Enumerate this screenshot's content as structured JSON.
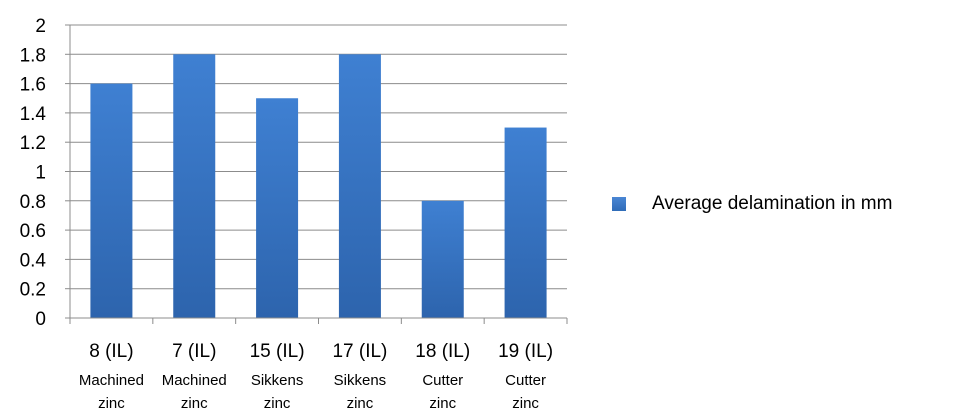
{
  "chart_data": {
    "type": "bar",
    "categories": [
      {
        "label": "8 (IL)",
        "sub": [
          "Machined",
          "zinc"
        ]
      },
      {
        "label": "7 (IL)",
        "sub": [
          "Machined",
          "zinc"
        ]
      },
      {
        "label": "15 (IL)",
        "sub": [
          "Sikkens",
          "zinc"
        ]
      },
      {
        "label": "17 (IL)",
        "sub": [
          "Sikkens",
          "zinc"
        ]
      },
      {
        "label": "18 (IL)",
        "sub": [
          "Cutter",
          "zinc"
        ]
      },
      {
        "label": "19 (IL)",
        "sub": [
          "Cutter",
          "zinc"
        ]
      }
    ],
    "series": [
      {
        "name": "Average delamination in mm",
        "values": [
          1.6,
          1.8,
          1.5,
          1.8,
          0.8,
          1.3
        ],
        "color": "#3a78c8"
      }
    ],
    "ylim": [
      0,
      2
    ],
    "yticks": [
      "0",
      "0.2",
      "0.4",
      "0.6",
      "0.8",
      "1",
      "1.2",
      "1.4",
      "1.6",
      "1.8",
      "2"
    ],
    "grid": true,
    "legend_position": "right",
    "gridline_color": "#8c8c8c"
  }
}
